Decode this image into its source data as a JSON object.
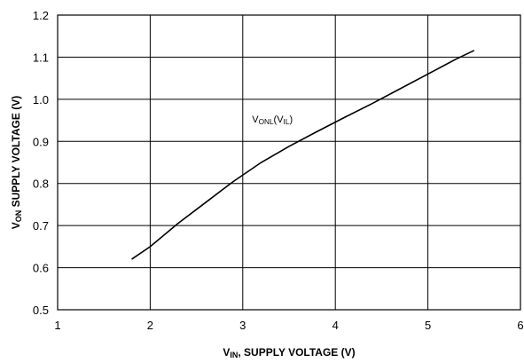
{
  "chart_data": {
    "type": "line",
    "xlabel": {
      "main": "V",
      "sub": "IN",
      "rest": ", SUPPLY VOLTAGE (V)"
    },
    "ylabel": {
      "main": "V",
      "sub": "ON",
      "rest": " SUPPLY VOLTAGE (V)"
    },
    "xlim": [
      1,
      6
    ],
    "ylim": [
      0.5,
      1.2
    ],
    "xticks": [
      1,
      2,
      3,
      4,
      5,
      6
    ],
    "yticks": [
      0.5,
      0.6,
      0.7,
      0.8,
      0.9,
      1.0,
      1.1,
      1.2
    ],
    "xtick_labels": [
      "1",
      "2",
      "3",
      "4",
      "5",
      "6"
    ],
    "ytick_labels": [
      "0.5",
      "0.6",
      "0.7",
      "0.8",
      "0.9",
      "1.0",
      "1.1",
      "1.2"
    ],
    "grid": true,
    "series": [
      {
        "name": "",
        "x": [
          1.8,
          2.0,
          2.3,
          2.6,
          2.9,
          3.2,
          3.5,
          3.8,
          4.1,
          4.4,
          4.7,
          5.0,
          5.3,
          5.5
        ],
        "y": [
          0.62,
          0.65,
          0.705,
          0.755,
          0.805,
          0.85,
          0.888,
          0.923,
          0.957,
          0.99,
          1.025,
          1.06,
          1.095,
          1.116
        ]
      }
    ],
    "annotations": [
      {
        "x": 3.1,
        "y": 0.945,
        "parts": [
          {
            "text": "V",
            "sub": false
          },
          {
            "text": "ONL",
            "sub": true
          },
          {
            "text": "(V",
            "sub": false
          },
          {
            "text": "IL",
            "sub": true
          },
          {
            "text": ")",
            "sub": false
          }
        ]
      }
    ],
    "colors": {
      "line": "#000000",
      "grid": "#000000",
      "background": "#ffffff"
    }
  }
}
